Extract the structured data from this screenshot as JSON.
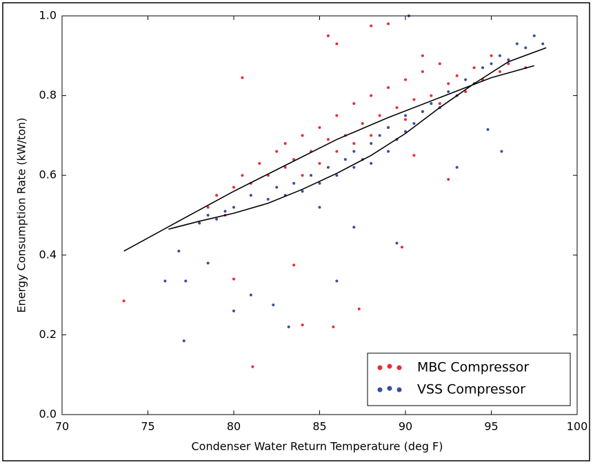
{
  "chart_data": {
    "type": "scatter",
    "x_label": "Condenser Water Return Temperature (deg F)",
    "y_label": "Energy Consumption Rate (kW/ton)",
    "xlim": [
      70,
      100
    ],
    "ylim": [
      0,
      1
    ],
    "xticks": [
      70,
      75,
      80,
      85,
      90,
      95,
      100
    ],
    "yticks": [
      {
        "value": 0,
        "label": "0.0"
      },
      0.2,
      0.4,
      0.6,
      0.8,
      {
        "value": 1,
        "label": "1.0"
      }
    ],
    "legend": "lower right",
    "series": [
      {
        "name": "MBC Compressor",
        "color": "#ee2a35",
        "x": [
          78.5,
          79,
          79.5,
          80,
          80.5,
          81,
          81.5,
          82,
          82.5,
          83,
          83,
          83.5,
          84,
          84,
          84.5,
          85,
          85,
          85.5,
          86,
          86,
          86.5,
          87,
          87,
          87.5,
          88,
          88,
          88.5,
          89,
          89,
          89.5,
          90,
          90,
          90.5,
          91,
          91,
          91.5,
          92,
          92,
          92.5,
          93,
          93.5,
          94,
          94.5,
          95,
          95.5,
          96,
          97,
          92.5,
          90.5,
          91,
          73.6,
          81.1,
          80.5,
          84,
          85.8,
          87.3,
          80,
          83.5,
          89.8,
          85.5,
          88,
          89,
          86
        ],
        "values": [
          0.52,
          0.55,
          0.5,
          0.57,
          0.6,
          0.58,
          0.63,
          0.6,
          0.66,
          0.62,
          0.68,
          0.64,
          0.7,
          0.6,
          0.66,
          0.72,
          0.63,
          0.69,
          0.75,
          0.66,
          0.7,
          0.78,
          0.68,
          0.73,
          0.8,
          0.7,
          0.75,
          0.82,
          0.72,
          0.77,
          0.84,
          0.74,
          0.79,
          0.86,
          0.76,
          0.8,
          0.88,
          0.78,
          0.83,
          0.85,
          0.81,
          0.87,
          0.84,
          0.9,
          0.86,
          0.88,
          0.87,
          0.59,
          0.65,
          0.9,
          0.285,
          0.12,
          0.845,
          0.225,
          0.22,
          0.265,
          0.34,
          0.375,
          0.42,
          0.95,
          0.975,
          0.98,
          0.93
        ]
      },
      {
        "name": "VSS Compressor",
        "color": "#3a4ea0",
        "x": [
          78,
          78.5,
          79,
          79.5,
          80,
          81,
          82,
          82.5,
          83,
          83.5,
          84,
          84.5,
          85,
          85.5,
          86,
          86.5,
          87,
          87,
          87.5,
          88,
          88,
          88.5,
          89,
          89,
          89.5,
          90,
          90,
          90.5,
          91,
          91.5,
          92,
          92.5,
          93,
          93.5,
          94,
          94.5,
          95,
          95.5,
          96,
          96.5,
          97,
          97.5,
          98,
          85,
          93,
          76,
          77.2,
          77.1,
          76.8,
          81,
          82.3,
          83.2,
          86,
          87,
          89.5,
          80,
          78.5,
          90.2,
          95.6,
          94.8
        ],
        "values": [
          0.48,
          0.5,
          0.49,
          0.51,
          0.52,
          0.55,
          0.54,
          0.57,
          0.55,
          0.58,
          0.56,
          0.6,
          0.58,
          0.62,
          0.6,
          0.64,
          0.62,
          0.66,
          0.64,
          0.68,
          0.63,
          0.7,
          0.66,
          0.72,
          0.69,
          0.71,
          0.75,
          0.73,
          0.76,
          0.78,
          0.77,
          0.81,
          0.8,
          0.84,
          0.83,
          0.87,
          0.88,
          0.9,
          0.89,
          0.93,
          0.92,
          0.95,
          0.93,
          0.52,
          0.62,
          0.335,
          0.335,
          0.185,
          0.41,
          0.3,
          0.275,
          0.22,
          0.335,
          0.47,
          0.43,
          0.26,
          0.38,
          1.0,
          0.66,
          0.715
        ]
      }
    ],
    "lines": [
      {
        "color": "#000000",
        "x": [
          73.6,
          77,
          80,
          83,
          86,
          89,
          92,
          95,
          97.5
        ],
        "values": [
          0.41,
          0.49,
          0.56,
          0.625,
          0.69,
          0.745,
          0.795,
          0.845,
          0.875
        ]
      },
      {
        "color": "#000000",
        "x": [
          76.2,
          78,
          80,
          82,
          84,
          86,
          88,
          90,
          92,
          94,
          96,
          98.2
        ],
        "values": [
          0.465,
          0.485,
          0.505,
          0.53,
          0.565,
          0.605,
          0.65,
          0.705,
          0.77,
          0.83,
          0.885,
          0.92
        ]
      }
    ]
  }
}
